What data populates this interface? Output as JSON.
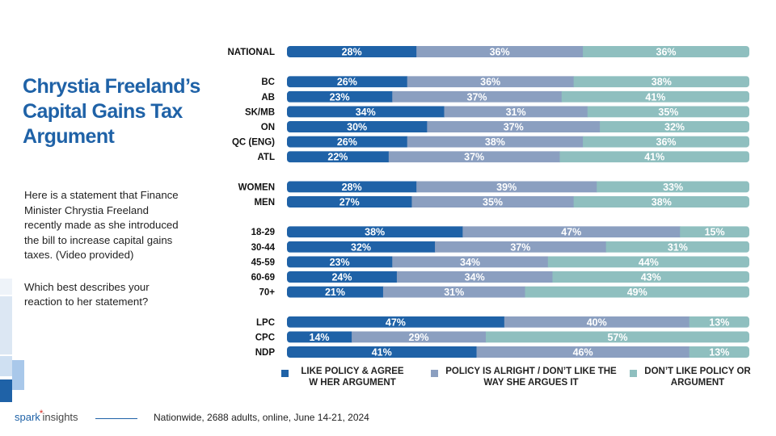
{
  "title": "Chrystia Freeland’s Capital Gains Tax Argument",
  "description": [
    "Here is a statement that Finance Minister Chrystia Freeland recently made as she introduced the bill to increase capital gains taxes. (Video provided)",
    "Which best describes your reaction to her statement?"
  ],
  "footer": {
    "logo_word1": "spark",
    "logo_star": "*",
    "logo_word2": "insights",
    "note": "Nationwide, 2688 adults, online, June 14-21, 2024"
  },
  "colors": {
    "series1": "#1f62a7",
    "series2": "#8b9fc0",
    "series3": "#8fbfbf",
    "title": "#1f62a7",
    "accent": "#d9342b"
  },
  "chart_data": {
    "type": "bar",
    "orientation": "horizontal",
    "stacked": true,
    "unit": "%",
    "xlim": [
      0,
      100
    ],
    "legend_position": "bottom",
    "series": [
      {
        "name": "LIKE POLICY & AGREE W HER ARGUMENT",
        "color": "#1f62a7"
      },
      {
        "name": "POLICY IS ALRIGHT / DON’T LIKE THE WAY SHE ARGUES IT",
        "color": "#8b9fc0"
      },
      {
        "name": "DON’T LIKE POLICY OR ARGUMENT",
        "color": "#8fbfbf"
      }
    ],
    "groups": [
      {
        "rows": [
          {
            "label": "NATIONAL",
            "values": [
              28,
              36,
              36
            ]
          }
        ]
      },
      {
        "rows": [
          {
            "label": "BC",
            "values": [
              26,
              36,
              38
            ]
          },
          {
            "label": "AB",
            "values": [
              23,
              37,
              41
            ]
          },
          {
            "label": "SK/MB",
            "values": [
              34,
              31,
              35
            ]
          },
          {
            "label": "ON",
            "values": [
              30,
              37,
              32
            ]
          },
          {
            "label": "QC (ENG)",
            "values": [
              26,
              38,
              36
            ]
          },
          {
            "label": "ATL",
            "values": [
              22,
              37,
              41
            ]
          }
        ]
      },
      {
        "rows": [
          {
            "label": "WOMEN",
            "values": [
              28,
              39,
              33
            ]
          },
          {
            "label": "MEN",
            "values": [
              27,
              35,
              38
            ]
          }
        ]
      },
      {
        "rows": [
          {
            "label": "18-29",
            "values": [
              38,
              47,
              15
            ]
          },
          {
            "label": "30-44",
            "values": [
              32,
              37,
              31
            ]
          },
          {
            "label": "45-59",
            "values": [
              23,
              34,
              44
            ]
          },
          {
            "label": "60-69",
            "values": [
              24,
              34,
              43
            ]
          },
          {
            "label": "70+",
            "values": [
              21,
              31,
              49
            ]
          }
        ]
      },
      {
        "rows": [
          {
            "label": "LPC",
            "values": [
              47,
              40,
              13
            ]
          },
          {
            "label": "CPC",
            "values": [
              14,
              29,
              57
            ]
          },
          {
            "label": "NDP",
            "values": [
              41,
              46,
              13
            ]
          }
        ]
      }
    ]
  }
}
